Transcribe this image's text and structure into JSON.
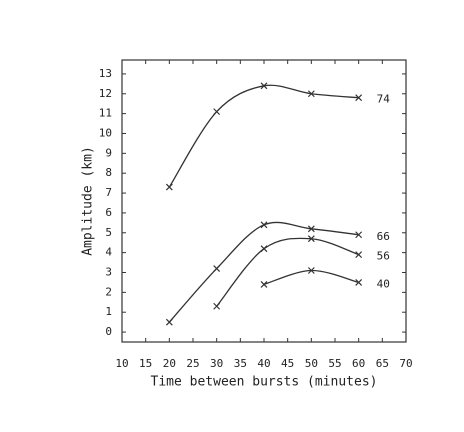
{
  "chart_data": {
    "type": "line",
    "x_label": "Time between bursts (minutes)",
    "y_label": "Amplitude (km)",
    "xlim": [
      10,
      70
    ],
    "xticks": [
      10,
      15,
      20,
      25,
      30,
      35,
      40,
      45,
      50,
      55,
      60,
      65,
      70
    ],
    "ylim": [
      -0.5,
      13.7
    ],
    "yticks": [
      0,
      1,
      2,
      3,
      4,
      5,
      6,
      7,
      8,
      9,
      10,
      11,
      12,
      13
    ],
    "series": [
      {
        "name": "74",
        "color": "#333333",
        "x": [
          20,
          30,
          40,
          50,
          60
        ],
        "values": [
          7.3,
          11.1,
          12.4,
          12.0,
          11.8
        ]
      },
      {
        "name": "66",
        "color": "#333333",
        "x": [
          20,
          30,
          40,
          50,
          60
        ],
        "values": [
          0.5,
          3.2,
          5.4,
          5.2,
          4.9
        ]
      },
      {
        "name": "56",
        "color": "#333333",
        "x": [
          30,
          40,
          50,
          60
        ],
        "values": [
          1.3,
          4.2,
          4.7,
          3.9
        ]
      },
      {
        "name": "40",
        "color": "#333333",
        "x": [
          40,
          50,
          60
        ],
        "values": [
          2.4,
          3.1,
          2.5
        ]
      }
    ]
  }
}
